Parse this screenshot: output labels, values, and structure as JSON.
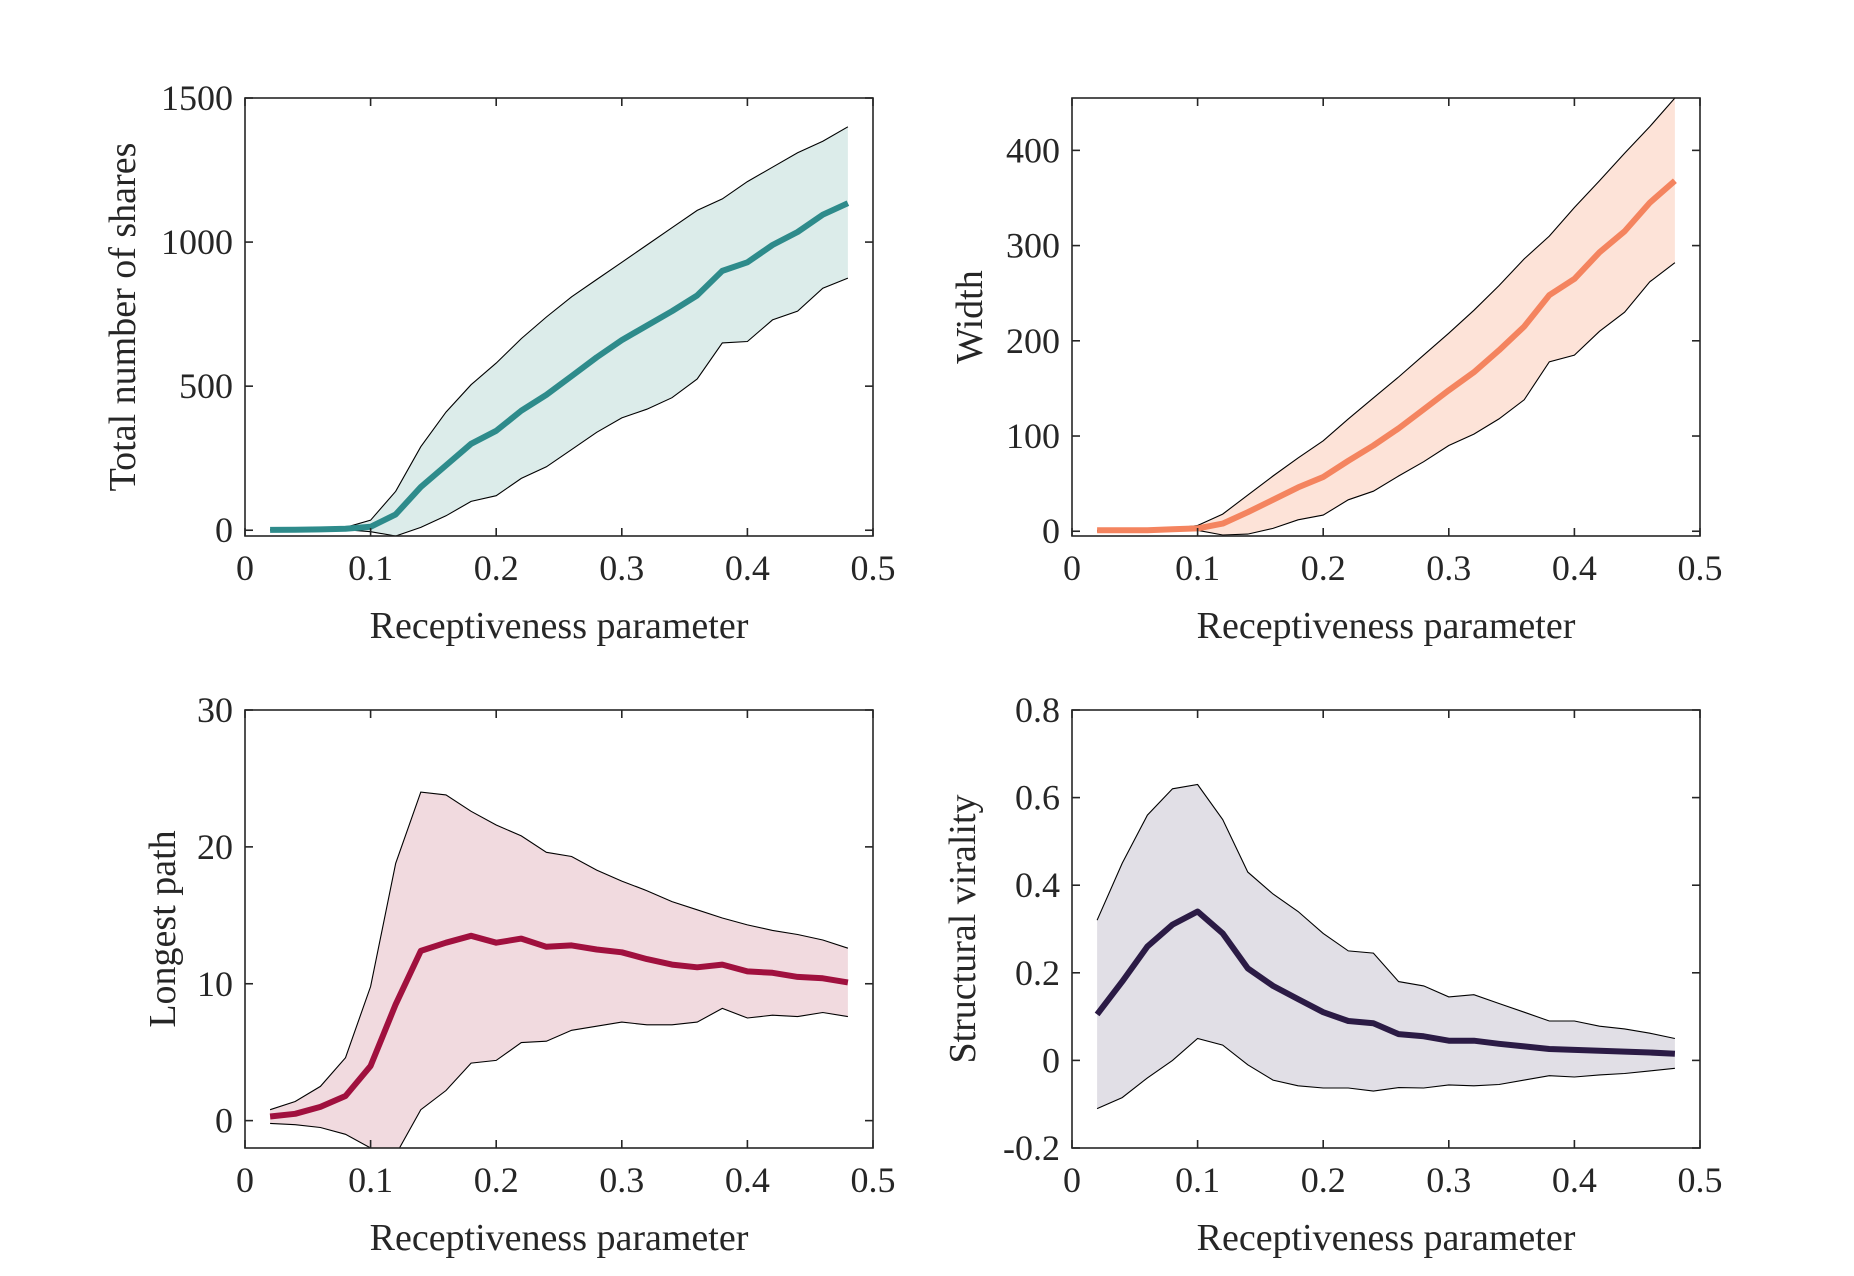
{
  "chart_data": [
    {
      "type": "line",
      "xlabel": "Receptiveness parameter",
      "ylabel": "Total number of shares",
      "xlim": [
        0,
        0.5
      ],
      "ylim": [
        -20,
        1500
      ],
      "xticks": [
        0,
        0.1,
        0.2,
        0.3,
        0.4,
        0.5
      ],
      "xtick_labels": [
        "0",
        "0.1",
        "0.2",
        "0.3",
        "0.4",
        "0.5"
      ],
      "yticks": [
        0,
        500,
        1000,
        1500
      ],
      "ytick_labels": [
        "0",
        "500",
        "1000",
        "1500"
      ],
      "grid": false,
      "color": "#2e8b8b",
      "fill_color": "#dcecea",
      "x": [
        0.02,
        0.04,
        0.06,
        0.08,
        0.1,
        0.12,
        0.14,
        0.16,
        0.18,
        0.2,
        0.22,
        0.24,
        0.26,
        0.28,
        0.3,
        0.32,
        0.34,
        0.36,
        0.38,
        0.4,
        0.42,
        0.44,
        0.46,
        0.48
      ],
      "mean": [
        1,
        2,
        3,
        5,
        12,
        55,
        150,
        225,
        300,
        345,
        415,
        470,
        535,
        600,
        660,
        710,
        760,
        815,
        900,
        930,
        990,
        1035,
        1095,
        1135
      ],
      "upper": [
        2,
        3,
        5,
        10,
        35,
        135,
        290,
        410,
        505,
        580,
        665,
        740,
        810,
        870,
        930,
        990,
        1050,
        1110,
        1150,
        1210,
        1260,
        1310,
        1350,
        1400
      ],
      "lower": [
        0,
        1,
        2,
        2,
        -5,
        -20,
        10,
        50,
        100,
        120,
        180,
        220,
        280,
        340,
        390,
        420,
        460,
        525,
        650,
        655,
        730,
        760,
        840,
        875
      ]
    },
    {
      "type": "line",
      "xlabel": "Receptiveness parameter",
      "ylabel": "Width",
      "xlim": [
        0,
        0.5
      ],
      "ylim": [
        -5,
        455
      ],
      "xticks": [
        0,
        0.1,
        0.2,
        0.3,
        0.4,
        0.5
      ],
      "xtick_labels": [
        "0",
        "0.1",
        "0.2",
        "0.3",
        "0.4",
        "0.5"
      ],
      "yticks": [
        0,
        100,
        200,
        300,
        400
      ],
      "ytick_labels": [
        "0",
        "100",
        "200",
        "300",
        "400"
      ],
      "grid": false,
      "color": "#f4845f",
      "fill_color": "#fde3d8",
      "x": [
        0.02,
        0.04,
        0.06,
        0.08,
        0.1,
        0.12,
        0.14,
        0.16,
        0.18,
        0.2,
        0.22,
        0.24,
        0.26,
        0.28,
        0.3,
        0.32,
        0.34,
        0.36,
        0.38,
        0.4,
        0.42,
        0.44,
        0.46,
        0.48
      ],
      "mean": [
        1,
        1,
        1,
        2,
        3,
        8,
        20,
        33,
        46,
        57,
        74,
        90,
        108,
        128,
        148,
        167,
        190,
        215,
        248,
        265,
        293,
        315,
        345,
        368
      ],
      "upper": [
        1,
        1,
        2,
        3,
        6,
        18,
        38,
        58,
        77,
        95,
        118,
        140,
        162,
        185,
        208,
        232,
        258,
        286,
        310,
        340,
        368,
        397,
        425,
        455
      ],
      "lower": [
        0,
        0,
        0,
        1,
        1,
        -4,
        -3,
        3,
        12,
        17,
        33,
        42,
        58,
        73,
        90,
        102,
        118,
        138,
        178,
        185,
        210,
        230,
        262,
        282
      ]
    },
    {
      "type": "line",
      "xlabel": "Receptiveness parameter",
      "ylabel": "Longest path",
      "xlim": [
        0,
        0.5
      ],
      "ylim": [
        -2,
        30
      ],
      "xticks": [
        0,
        0.1,
        0.2,
        0.3,
        0.4,
        0.5
      ],
      "xtick_labels": [
        "0",
        "0.1",
        "0.2",
        "0.3",
        "0.4",
        "0.5"
      ],
      "yticks": [
        0,
        10,
        20,
        30
      ],
      "ytick_labels": [
        "0",
        "10",
        "20",
        "30"
      ],
      "grid": false,
      "color": "#a0103e",
      "fill_color": "#f1dadf",
      "x": [
        0.02,
        0.04,
        0.06,
        0.08,
        0.1,
        0.12,
        0.14,
        0.16,
        0.18,
        0.2,
        0.22,
        0.24,
        0.26,
        0.28,
        0.3,
        0.32,
        0.34,
        0.36,
        0.38,
        0.4,
        0.42,
        0.44,
        0.46,
        0.48
      ],
      "mean": [
        0.3,
        0.5,
        1.0,
        1.8,
        4.0,
        8.5,
        12.4,
        13.0,
        13.5,
        13.0,
        13.3,
        12.7,
        12.8,
        12.5,
        12.3,
        11.8,
        11.4,
        11.2,
        11.4,
        10.9,
        10.8,
        10.5,
        10.4,
        10.1
      ],
      "upper": [
        0.8,
        1.4,
        2.5,
        4.6,
        9.8,
        18.8,
        24.0,
        23.8,
        22.6,
        21.6,
        20.8,
        19.6,
        19.3,
        18.3,
        17.5,
        16.8,
        16.0,
        15.4,
        14.8,
        14.3,
        13.9,
        13.6,
        13.2,
        12.6
      ],
      "lower": [
        -0.2,
        -0.3,
        -0.5,
        -1.0,
        -2.0,
        -2.5,
        0.8,
        2.2,
        4.2,
        4.4,
        5.7,
        5.8,
        6.6,
        6.9,
        7.2,
        7.0,
        7.0,
        7.2,
        8.2,
        7.5,
        7.7,
        7.6,
        7.9,
        7.6
      ]
    },
    {
      "type": "line",
      "xlabel": "Receptiveness parameter",
      "ylabel": "Structural virality",
      "xlim": [
        0,
        0.5
      ],
      "ylim": [
        -0.2,
        0.8
      ],
      "xticks": [
        0,
        0.1,
        0.2,
        0.3,
        0.4,
        0.5
      ],
      "xtick_labels": [
        "0",
        "0.1",
        "0.2",
        "0.3",
        "0.4",
        "0.5"
      ],
      "yticks": [
        -0.2,
        0,
        0.2,
        0.4,
        0.6,
        0.8
      ],
      "ytick_labels": [
        "-0.2",
        "0",
        "0.2",
        "0.4",
        "0.6",
        "0.8"
      ],
      "grid": false,
      "color": "#2b1b45",
      "fill_color": "#e1dfe6",
      "x": [
        0.02,
        0.04,
        0.06,
        0.08,
        0.1,
        0.12,
        0.14,
        0.16,
        0.18,
        0.2,
        0.22,
        0.24,
        0.26,
        0.28,
        0.3,
        0.32,
        0.34,
        0.36,
        0.38,
        0.4,
        0.42,
        0.44,
        0.46,
        0.48
      ],
      "mean": [
        0.105,
        0.18,
        0.26,
        0.31,
        0.34,
        0.29,
        0.21,
        0.17,
        0.14,
        0.11,
        0.09,
        0.085,
        0.06,
        0.055,
        0.045,
        0.045,
        0.038,
        0.032,
        0.026,
        0.024,
        0.022,
        0.02,
        0.018,
        0.015
      ],
      "upper": [
        0.32,
        0.45,
        0.56,
        0.62,
        0.63,
        0.55,
        0.43,
        0.38,
        0.34,
        0.29,
        0.25,
        0.245,
        0.18,
        0.17,
        0.145,
        0.15,
        0.13,
        0.11,
        0.09,
        0.09,
        0.078,
        0.072,
        0.062,
        0.05
      ],
      "lower": [
        -0.11,
        -0.085,
        -0.04,
        0.0,
        0.05,
        0.035,
        -0.01,
        -0.045,
        -0.058,
        -0.063,
        -0.063,
        -0.07,
        -0.062,
        -0.063,
        -0.056,
        -0.058,
        -0.055,
        -0.045,
        -0.035,
        -0.038,
        -0.033,
        -0.03,
        -0.024,
        -0.018
      ]
    }
  ]
}
